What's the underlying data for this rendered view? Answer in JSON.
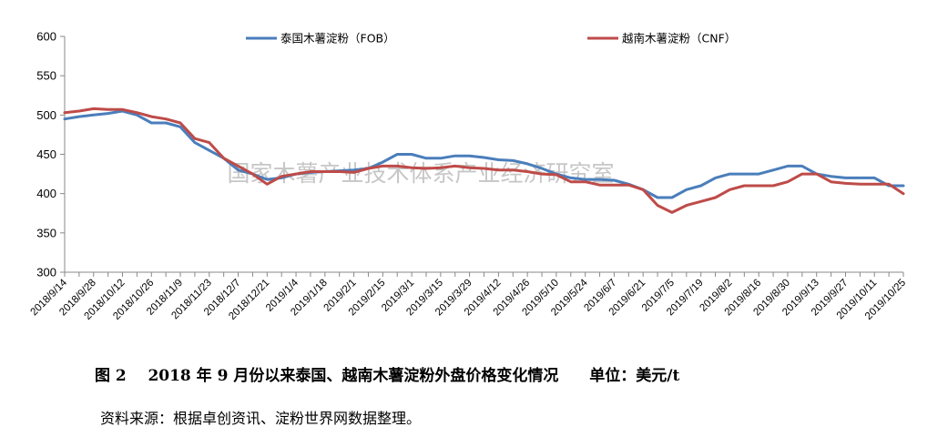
{
  "chart_data": {
    "type": "line",
    "title": "",
    "xlabel": "",
    "ylabel": "",
    "ylim": [
      300,
      600
    ],
    "yticks": [
      300,
      350,
      400,
      450,
      500,
      550,
      600
    ],
    "legend": "top",
    "x_tick_labels": [
      "2018/9/14",
      "2018/9/28",
      "2018/10/12",
      "2018/10/26",
      "2018/11/9",
      "2018/11/23",
      "2018/12/7",
      "2018/12/21",
      "2019/1/4",
      "2019/1/18",
      "2019/2/1",
      "2019/2/15",
      "2019/3/1",
      "2019/3/15",
      "2019/3/29",
      "2019/4/12",
      "2019/4/26",
      "2019/5/10",
      "2019/5/24",
      "2019/6/7",
      "2019/6/21",
      "2019/7/5",
      "2019/7/19",
      "2019/8/2",
      "2019/8/16",
      "2019/8/30",
      "2019/9/13",
      "2019/9/27",
      "2019/10/11",
      "2019/10/25"
    ],
    "x": [
      "2018/9/14",
      "2018/9/21",
      "2018/9/28",
      "2018/10/5",
      "2018/10/12",
      "2018/10/19",
      "2018/10/26",
      "2018/11/2",
      "2018/11/9",
      "2018/11/16",
      "2018/11/23",
      "2018/11/30",
      "2018/12/7",
      "2018/12/14",
      "2018/12/21",
      "2018/12/28",
      "2019/1/4",
      "2019/1/11",
      "2019/1/18",
      "2019/1/25",
      "2019/2/1",
      "2019/2/8",
      "2019/2/15",
      "2019/2/22",
      "2019/3/1",
      "2019/3/8",
      "2019/3/15",
      "2019/3/22",
      "2019/3/29",
      "2019/4/5",
      "2019/4/12",
      "2019/4/19",
      "2019/4/26",
      "2019/5/3",
      "2019/5/10",
      "2019/5/17",
      "2019/5/24",
      "2019/5/31",
      "2019/6/7",
      "2019/6/14",
      "2019/6/21",
      "2019/6/28",
      "2019/7/5",
      "2019/7/12",
      "2019/7/19",
      "2019/7/26",
      "2019/8/2",
      "2019/8/9",
      "2019/8/16",
      "2019/8/23",
      "2019/8/30",
      "2019/9/6",
      "2019/9/13",
      "2019/9/20",
      "2019/9/27",
      "2019/10/4",
      "2019/10/11",
      "2019/10/18",
      "2019/10/25"
    ],
    "series": [
      {
        "name": "泰国木薯淀粉（FOB）",
        "color": "#4a7ebb",
        "values": [
          495,
          498,
          500,
          502,
          505,
          500,
          490,
          490,
          485,
          465,
          455,
          445,
          430,
          425,
          418,
          420,
          425,
          427,
          428,
          429,
          430,
          432,
          440,
          450,
          450,
          445,
          445,
          448,
          448,
          446,
          443,
          442,
          438,
          432,
          425,
          420,
          418,
          418,
          417,
          412,
          405,
          395,
          395,
          405,
          410,
          420,
          425,
          425,
          425,
          430,
          435,
          435,
          425,
          422,
          420,
          420,
          420,
          410,
          410
        ]
      },
      {
        "name": "越南木薯淀粉（CNF）",
        "color": "#be4b48",
        "values": [
          503,
          505,
          508,
          507,
          507,
          503,
          498,
          495,
          490,
          470,
          465,
          445,
          435,
          425,
          412,
          422,
          425,
          428,
          428,
          428,
          427,
          432,
          435,
          435,
          433,
          432,
          433,
          435,
          433,
          432,
          430,
          430,
          428,
          425,
          424,
          415,
          415,
          411,
          411,
          411,
          405,
          385,
          376,
          385,
          390,
          395,
          405,
          410,
          410,
          410,
          415,
          425,
          425,
          415,
          413,
          412,
          412,
          412,
          400
        ]
      }
    ]
  },
  "watermark": "国家木薯产业技术体系产业经济研究室",
  "caption": {
    "figure": "图 2",
    "title": "2018 年 9 月份以来泰国、越南木薯淀粉外盘价格变化情况",
    "unit": "单位：美元/t"
  },
  "source": "资料来源：根据卓创资讯、淀粉世界网数据整理。"
}
